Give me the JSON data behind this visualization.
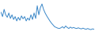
{
  "line_color": "#3a87c8",
  "background_color": "#ffffff",
  "linewidth": 0.7,
  "values": [
    62,
    50,
    70,
    55,
    48,
    60,
    45,
    55,
    42,
    50,
    38,
    48,
    40,
    52,
    44,
    50,
    38,
    46,
    40,
    55,
    42,
    60,
    45,
    80,
    55,
    75,
    85,
    70,
    60,
    52,
    45,
    38,
    32,
    27,
    22,
    20,
    18,
    17,
    19,
    22,
    18,
    24,
    20,
    17,
    21,
    18,
    20,
    18,
    17,
    19,
    17,
    16,
    18,
    16,
    15,
    17,
    15,
    14,
    16,
    15
  ]
}
